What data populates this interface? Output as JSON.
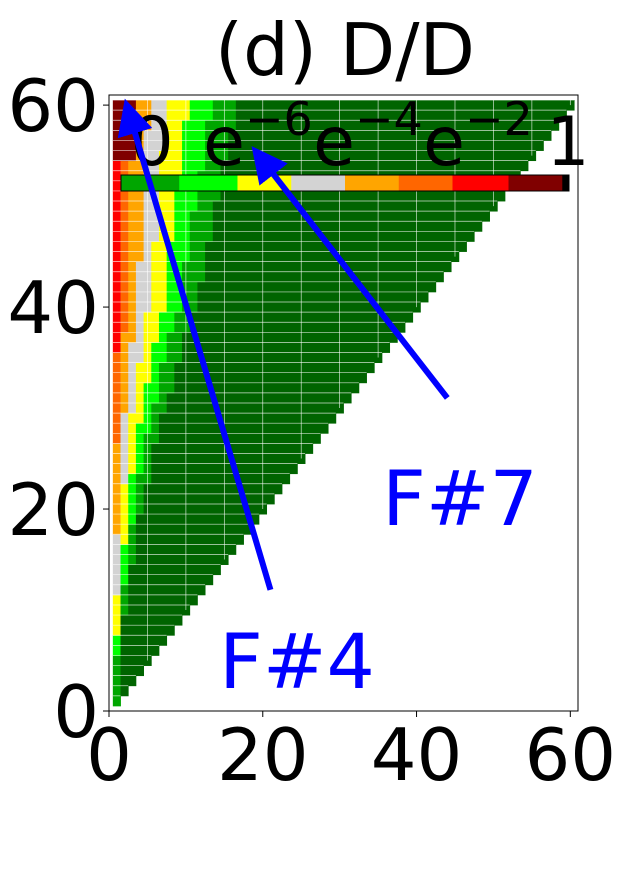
{
  "chart_data": {
    "type": "heatmap",
    "title": "(d) D/D",
    "xlabel": "",
    "ylabel": "",
    "xlim": [
      0,
      61
    ],
    "ylim": [
      0,
      61
    ],
    "x_ticks": [
      "0",
      "20",
      "40",
      "60"
    ],
    "y_ticks": [
      "0",
      "20",
      "40",
      "60"
    ],
    "grid": true,
    "colorbar": {
      "placement": "top",
      "tick_labels": [
        {
          "base": "0",
          "exp": ""
        },
        {
          "base": "e",
          "exp": "−6"
        },
        {
          "base": "e",
          "exp": "−4"
        },
        {
          "base": "e",
          "exp": "−2"
        },
        {
          "base": "1",
          "exp": ""
        }
      ],
      "colors": [
        "#00a600",
        "#00ff00",
        "#ffff00",
        "#d3d3d3",
        "#ffa500",
        "#ff6600",
        "#ff0000",
        "#800000",
        "#000000"
      ]
    },
    "colors": {
      "background_green": "#006400",
      "grid": "#ffffff",
      "annotation": "#0000ff"
    },
    "annotations": [
      {
        "text": "F#7",
        "from": [
          44,
          31
        ],
        "to": [
          19.5,
          55
        ]
      },
      {
        "text": "F#4",
        "from": [
          21,
          12
        ],
        "to": [
          2.5,
          59.5
        ]
      }
    ],
    "band_description": "Lower-triangular matrix (column x <= row y, y = 1..60). Color level decreases from dark red near x=0 to dark green near the diagonal."
  }
}
